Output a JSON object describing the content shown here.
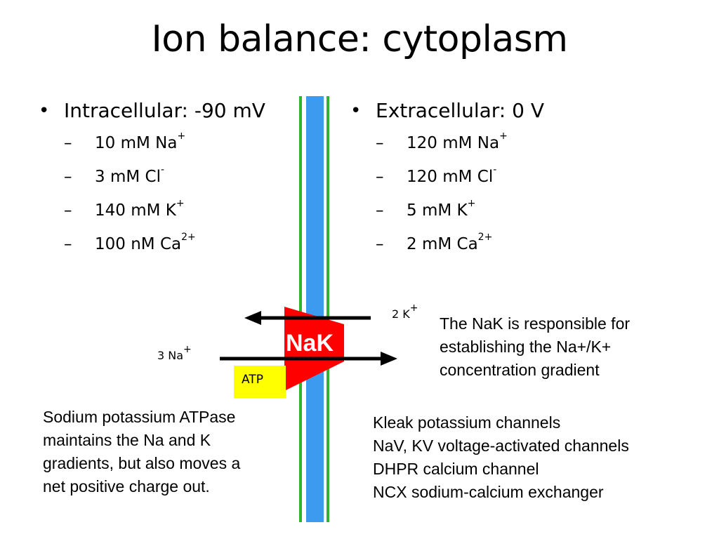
{
  "title": "Ion balance: cytoplasm",
  "intracellular": {
    "heading": "Intracellular: -90 mV",
    "items": [
      {
        "text": "10 mM Na",
        "sup": "+"
      },
      {
        "text": "3 mM Cl",
        "sup": "-"
      },
      {
        "text": "140 mM K",
        "sup": "+"
      },
      {
        "text": "100 nM Ca",
        "sup": "2+"
      }
    ]
  },
  "extracellular": {
    "heading": "Extracellular: 0 V",
    "items": [
      {
        "text": "120 mM Na",
        "sup": "+"
      },
      {
        "text": "120 mM Cl",
        "sup": "-"
      },
      {
        "text": "5 mM K",
        "sup": "+"
      },
      {
        "text": "2 mM Ca",
        "sup": "2+"
      }
    ]
  },
  "pump": {
    "name": "NaK",
    "atp": "ATP",
    "k_label": {
      "text": "2 K",
      "sup": "+"
    },
    "na_label": {
      "text": "3 Na",
      "sup": "+"
    }
  },
  "nak_note": [
    "The NaK is responsible for",
    "establishing the Na+/K+",
    "concentration gradient"
  ],
  "atpase_note": [
    "Sodium potassium ATPase",
    "maintains the Na and K",
    "gradients, but also moves a",
    "net positive charge out."
  ],
  "channels": [
    "Kleak potassium channels",
    "NaV, KV voltage-activated channels",
    "DHPR calcium channel",
    "NCX sodium-calcium exchanger"
  ],
  "colors": {
    "membrane": "#3d9bef",
    "membrane_edge": "#2fb52f",
    "pump": "#ff0000",
    "atp": "#ffff00"
  }
}
